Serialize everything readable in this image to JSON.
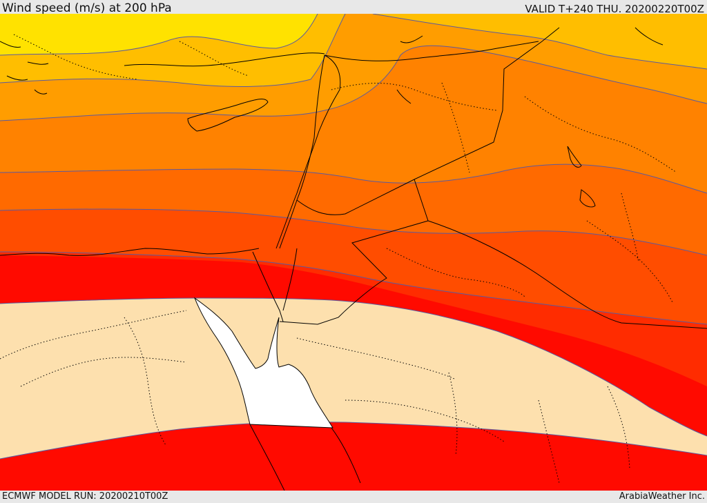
{
  "header": {
    "title": "Wind speed (m/s) at 200 hPa",
    "valid": "VALID T+240 THU. 20200220T00Z"
  },
  "footer": {
    "model_run": "ECMWF MODEL RUN: 20200210T00Z",
    "credit": "ArabiaWeather Inc."
  },
  "map": {
    "field": "wind speed at 200 hPa",
    "colors": {
      "lowest_band": "#fde0ae",
      "band_1": "#ffe200",
      "band_2": "#ffbe00",
      "band_3": "#ff9d00",
      "band_4": "#ff8200",
      "band_5": "#ff6a00",
      "band_6": "#ff4d00",
      "band_7": "#ff2c00",
      "band_8": "#ff0a00",
      "sea": "#ffffff",
      "contour": "#5a5aa0",
      "border": "#000000"
    }
  }
}
